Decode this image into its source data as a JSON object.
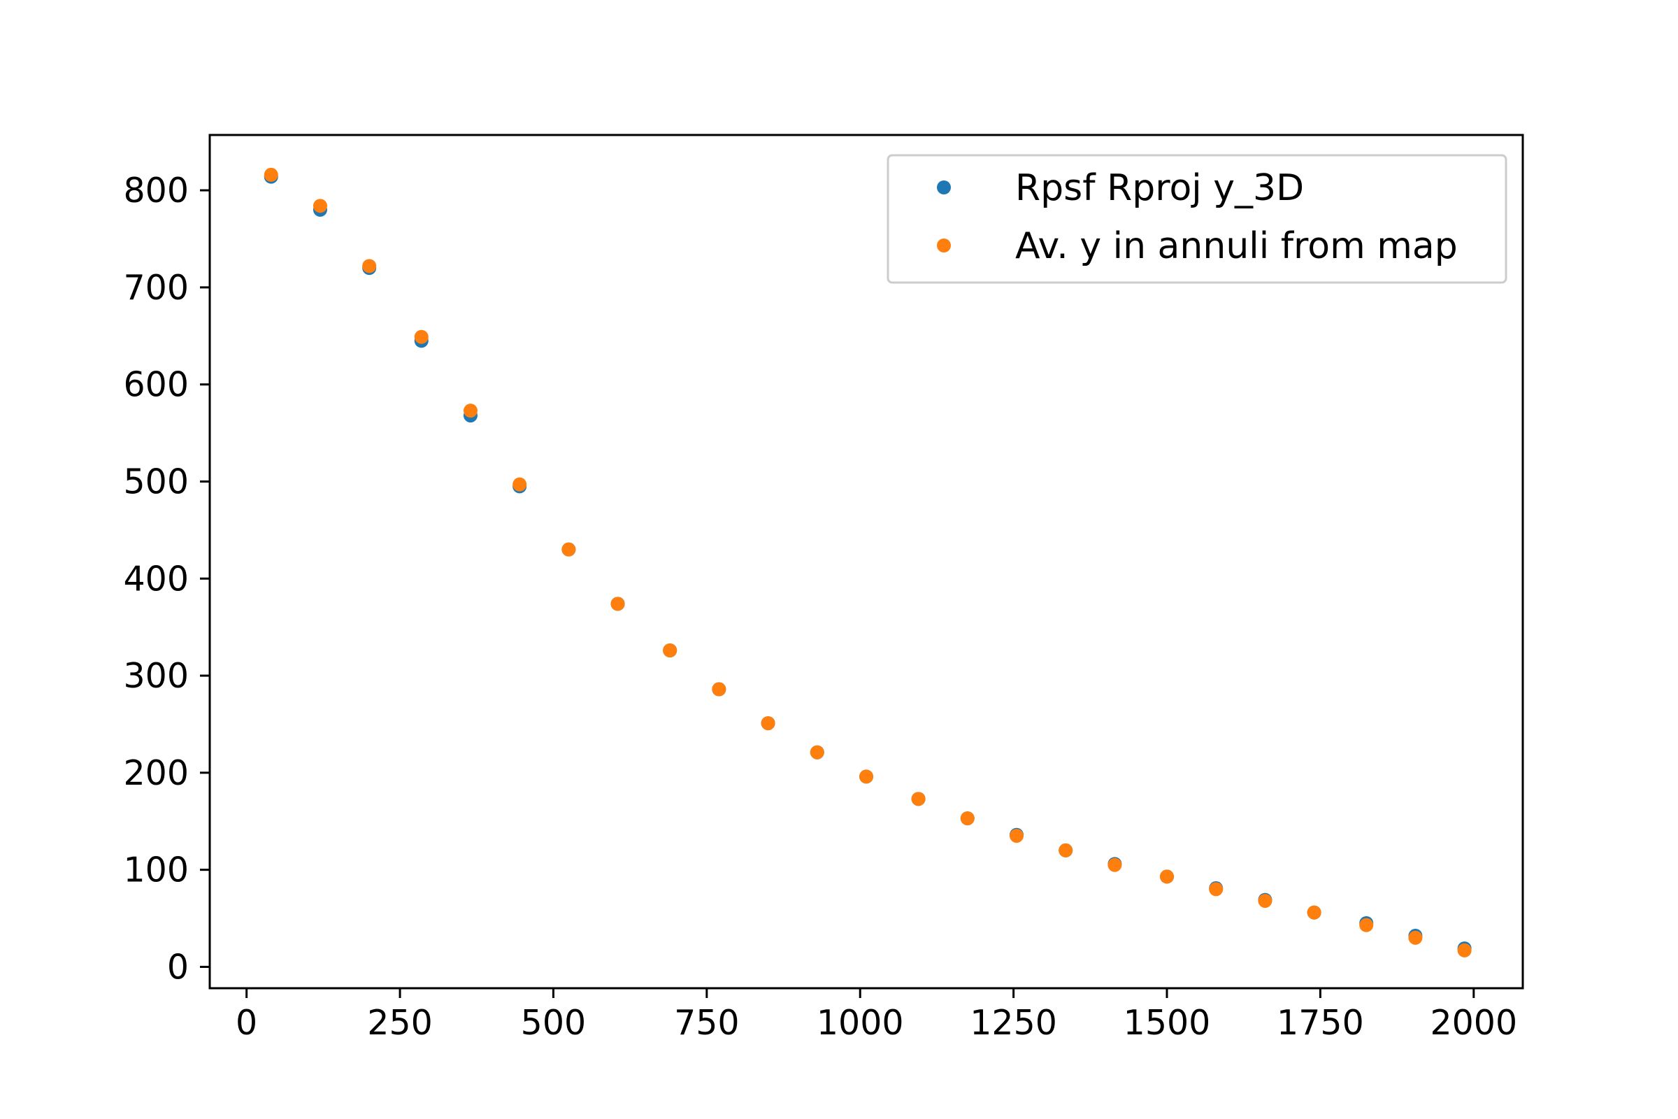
{
  "chart_data": {
    "type": "scatter",
    "title": "",
    "xlabel": "",
    "ylabel": "",
    "xlim": [
      -60,
      2080
    ],
    "ylim": [
      -22,
      857
    ],
    "grid": false,
    "legend_position": "top-right",
    "x_ticks": [
      0,
      250,
      500,
      750,
      1000,
      1250,
      1500,
      1750,
      2000
    ],
    "y_ticks": [
      0,
      100,
      200,
      300,
      400,
      500,
      600,
      700,
      800
    ],
    "x": [
      40,
      120,
      200,
      285,
      365,
      445,
      525,
      605,
      690,
      770,
      850,
      930,
      1010,
      1095,
      1175,
      1255,
      1335,
      1415,
      1500,
      1580,
      1660,
      1740,
      1825,
      1905,
      1985
    ],
    "series": [
      {
        "name": "Rpsf Rproj y_3D",
        "color": "#1f77b4",
        "values": [
          814,
          780,
          720,
          645,
          568,
          495,
          430,
          374,
          326,
          286,
          251,
          221,
          196,
          173,
          153,
          136,
          120,
          106,
          93,
          81,
          69,
          56,
          45,
          32,
          19
        ]
      },
      {
        "name": "Av. y in annuli from map",
        "color": "#ff7f0e",
        "values": [
          816,
          784,
          722,
          649,
          573,
          497,
          430,
          374,
          326,
          286,
          251,
          221,
          196,
          173,
          153,
          135,
          120,
          105,
          93,
          80,
          68,
          56,
          43,
          30,
          17
        ]
      }
    ]
  }
}
